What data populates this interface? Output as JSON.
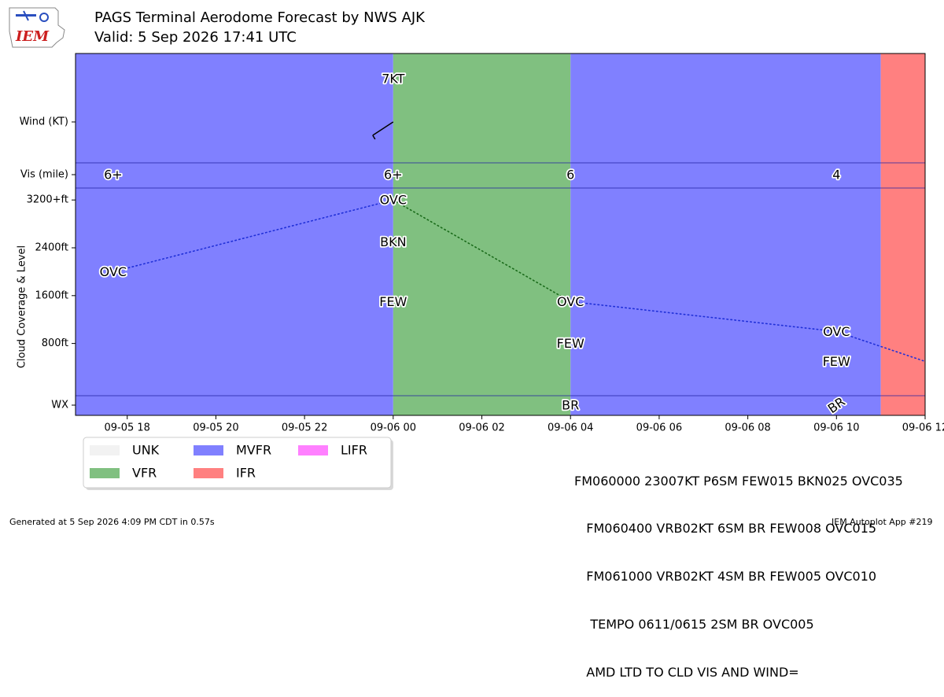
{
  "header": {
    "title": "PAGS Terminal Aerodome Forecast by NWS AJK",
    "subtitle": "Valid: 5 Sep 2026 17:41 UTC"
  },
  "logo": {
    "text": "IEM",
    "color": "#cc1f1f"
  },
  "footer": {
    "left": "Generated at 5 Sep 2026 4:09 PM CDT in 0.57s",
    "right": "IEM Autoplot App #219"
  },
  "taf_text": [
    "FM060000 23007KT P6SM FEW015 BKN025 OVC035",
    "   FM060400 VRB02KT 6SM BR FEW008 OVC015",
    "   FM061000 VRB02KT 4SM BR FEW005 OVC010",
    "    TEMPO 0611/0615 2SM BR OVC005",
    "   AMD LTD TO CLD VIS AND WIND="
  ],
  "chart_data": {
    "type": "timeline",
    "y_rows": [
      "Wind (KT)",
      "Vis (mile)"
    ],
    "ylabel": "Cloud Coverage & Level",
    "cloud_ticks": [
      {
        "value": 800,
        "label": "800ft"
      },
      {
        "value": 1600,
        "label": "1600ft"
      },
      {
        "value": 2400,
        "label": "2400ft"
      },
      {
        "value": 3200,
        "label": "3200+ft"
      }
    ],
    "wx_label": "WX",
    "cloud_ylim": [
      -100,
      3400
    ],
    "xlim": [
      "2026-09-05 16:50",
      "2026-09-06 12:00"
    ],
    "x_ticks": [
      {
        "t": "2026-09-05 18:00",
        "label": "09-05 18"
      },
      {
        "t": "2026-09-05 20:00",
        "label": "09-05 20"
      },
      {
        "t": "2026-09-05 22:00",
        "label": "09-05 22"
      },
      {
        "t": "2026-09-06 00:00",
        "label": "09-06 00"
      },
      {
        "t": "2026-09-06 02:00",
        "label": "09-06 02"
      },
      {
        "t": "2026-09-06 04:00",
        "label": "09-06 04"
      },
      {
        "t": "2026-09-06 06:00",
        "label": "09-06 06"
      },
      {
        "t": "2026-09-06 08:00",
        "label": "09-06 08"
      },
      {
        "t": "2026-09-06 10:00",
        "label": "09-06 10"
      },
      {
        "t": "2026-09-06 12:00",
        "label": "09-06 12"
      }
    ],
    "category_bands": [
      {
        "start": "2026-09-05 16:50",
        "end": "2026-09-06 00:00",
        "category": "MVFR"
      },
      {
        "start": "2026-09-06 00:00",
        "end": "2026-09-06 04:00",
        "category": "VFR"
      },
      {
        "start": "2026-09-06 04:00",
        "end": "2026-09-06 11:00",
        "category": "MVFR"
      },
      {
        "start": "2026-09-06 11:00",
        "end": "2026-09-06 12:00",
        "category": "IFR"
      }
    ],
    "legend": [
      {
        "label": "UNK",
        "color": "#f2f2f2"
      },
      {
        "label": "MVFR",
        "color": "#8080ff"
      },
      {
        "label": "LIFR",
        "color": "#ff80ff"
      },
      {
        "label": "VFR",
        "color": "#80c080"
      },
      {
        "label": "IFR",
        "color": "#ff8080"
      }
    ],
    "wind": [
      {
        "t": "2026-09-06 00:00",
        "label": "7KT",
        "direction": 230,
        "speed": 7
      }
    ],
    "visibility": [
      {
        "t": "2026-09-05 17:41",
        "label": "6+"
      },
      {
        "t": "2026-09-06 00:00",
        "label": "6+"
      },
      {
        "t": "2026-09-06 04:00",
        "label": "6"
      },
      {
        "t": "2026-09-06 10:00",
        "label": "4"
      }
    ],
    "clouds": [
      {
        "t": "2026-09-05 17:41",
        "level": 2000,
        "label": "OVC"
      },
      {
        "t": "2026-09-06 00:00",
        "level": 1500,
        "label": "FEW"
      },
      {
        "t": "2026-09-06 00:00",
        "level": 2500,
        "label": "BKN"
      },
      {
        "t": "2026-09-06 00:00",
        "level": 3500,
        "label": "OVC"
      },
      {
        "t": "2026-09-06 04:00",
        "level": 800,
        "label": "FEW"
      },
      {
        "t": "2026-09-06 04:00",
        "level": 1500,
        "label": "OVC"
      },
      {
        "t": "2026-09-06 10:00",
        "level": 500,
        "label": "FEW"
      },
      {
        "t": "2026-09-06 10:00",
        "level": 1000,
        "label": "OVC"
      }
    ],
    "ceiling_series": [
      {
        "t": "2026-09-05 17:41",
        "level": 2000
      },
      {
        "t": "2026-09-06 00:00",
        "level": 3500
      },
      {
        "t": "2026-09-06 04:00",
        "level": 1500
      },
      {
        "t": "2026-09-06 10:00",
        "level": 1000
      },
      {
        "t": "2026-09-06 12:00",
        "level": 500
      }
    ],
    "weather": [
      {
        "t": "2026-09-06 04:00",
        "label": "BR"
      },
      {
        "t": "2026-09-06 10:00",
        "label": "BR",
        "rotated": true
      }
    ]
  }
}
